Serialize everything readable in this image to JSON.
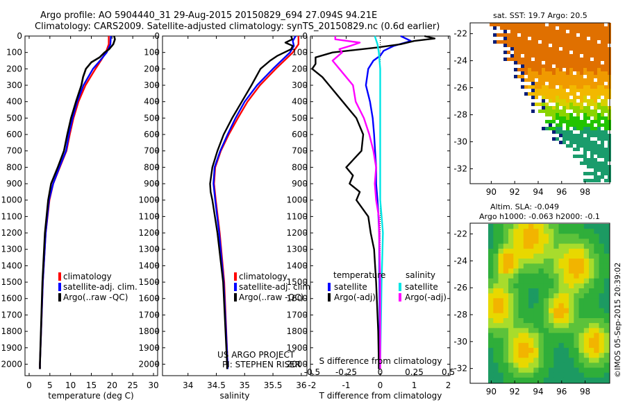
{
  "header": {
    "line1": "Argo profile: AO 5904440_31 29-Aug-2015 20150829_694 27.094S 94.21E",
    "line2": "Climatology: CARS2009. Satellite-adjusted climatology: synTS_20150829.nc (0.6d earlier)"
  },
  "colors": {
    "climatology": "#ff0000",
    "satellite": "#0000ff",
    "argo": "#000000",
    "s_satellite": "#00e5e5",
    "s_argo": "#ff00ff"
  },
  "depth_ticks": [
    "0",
    "100",
    "200",
    "300",
    "400",
    "500",
    "600",
    "700",
    "800",
    "900",
    "1000",
    "1100",
    "1200",
    "1300",
    "1400",
    "1500",
    "1600",
    "1700",
    "1800",
    "1900",
    "2000"
  ],
  "chart_data": [
    {
      "type": "line",
      "xlabel": "temperature (deg C)",
      "ylabel": "",
      "xlim": [
        -1,
        31
      ],
      "ylim": [
        2070,
        0
      ],
      "xticks": [
        "0",
        "5",
        "10",
        "15",
        "20",
        "25",
        "30"
      ],
      "legend": [
        "climatology",
        "satellite-adj. clim.",
        "Argo(..raw -QC)"
      ],
      "series": [
        {
          "name": "climatology",
          "depth": [
            0,
            50,
            100,
            150,
            200,
            300,
            400,
            500,
            600,
            700,
            800,
            900,
            1000,
            1200,
            1500,
            2000,
            2030
          ],
          "values": [
            19.2,
            19.2,
            18.5,
            17.3,
            16.0,
            13.6,
            11.9,
            10.7,
            9.8,
            9.0,
            7.4,
            5.8,
            4.9,
            4.0,
            3.3,
            2.6,
            2.6
          ]
        },
        {
          "name": "satellite-adj. clim.",
          "depth": [
            0,
            50,
            100,
            150,
            200,
            300,
            400,
            500,
            600,
            700,
            800,
            900,
            1000,
            1200,
            1500,
            2000,
            2030
          ],
          "values": [
            19.7,
            19.6,
            18.7,
            17.1,
            15.4,
            13.1,
            11.6,
            10.5,
            9.6,
            8.9,
            7.3,
            5.8,
            4.8,
            4.0,
            3.3,
            2.6,
            2.6
          ]
        },
        {
          "name": "Argo(..raw -QC)",
          "depth": [
            0,
            20,
            50,
            80,
            100,
            130,
            160,
            200,
            250,
            300,
            400,
            500,
            600,
            700,
            800,
            900,
            1000,
            1200,
            1500,
            2000,
            2030
          ],
          "values": [
            20.5,
            20.7,
            20.3,
            19.3,
            18.2,
            17.0,
            15.0,
            13.7,
            13.0,
            12.6,
            11.3,
            10.1,
            9.2,
            8.4,
            6.9,
            5.3,
            4.6,
            3.8,
            3.2,
            2.6,
            2.6
          ]
        }
      ]
    },
    {
      "type": "line",
      "xlabel": "salinity",
      "ylabel": "",
      "xlim": [
        33.55,
        36.1
      ],
      "ylim": [
        2070,
        0
      ],
      "xticks": [
        "34",
        "34.5",
        "35",
        "35.5",
        "36"
      ],
      "legend": [
        "climatology",
        "satellite-adj. clim.",
        "Argo(..raw -QC)"
      ],
      "annotation": [
        "US ARGO PROJECT",
        "PI: STEPHEN RISER"
      ],
      "series": [
        {
          "name": "climatology",
          "depth": [
            0,
            50,
            100,
            200,
            300,
            400,
            500,
            600,
            700,
            800,
            900,
            1000,
            1200,
            1500,
            2000,
            2030
          ],
          "values": [
            35.95,
            35.95,
            35.85,
            35.55,
            35.27,
            35.05,
            34.88,
            34.72,
            34.58,
            34.48,
            34.46,
            34.49,
            34.56,
            34.64,
            34.7,
            34.7
          ]
        },
        {
          "name": "satellite-adj. clim.",
          "depth": [
            0,
            30,
            60,
            100,
            200,
            300,
            400,
            500,
            600,
            700,
            800,
            900,
            1000,
            1200,
            1500,
            2000,
            2030
          ],
          "values": [
            35.9,
            35.85,
            35.87,
            35.8,
            35.5,
            35.22,
            35.0,
            34.84,
            34.7,
            34.57,
            34.47,
            34.45,
            34.48,
            34.55,
            34.63,
            34.7,
            34.7
          ]
        },
        {
          "name": "Argo(..raw -QC)",
          "depth": [
            0,
            20,
            40,
            60,
            80,
            100,
            120,
            150,
            200,
            300,
            400,
            500,
            600,
            700,
            800,
            900,
            950,
            1000,
            1200,
            1500,
            2000,
            2030
          ],
          "values": [
            35.82,
            35.84,
            35.72,
            35.85,
            35.82,
            35.7,
            35.58,
            35.45,
            35.28,
            35.12,
            34.95,
            34.78,
            34.63,
            34.52,
            34.43,
            34.39,
            34.4,
            34.43,
            34.52,
            34.62,
            34.69,
            34.69
          ]
        }
      ]
    },
    {
      "type": "line",
      "xlabel": "T difference from climatology",
      "x2label": "S difference from climatology",
      "ylabel": "",
      "xlim": [
        -2.05,
        2.05
      ],
      "ylim": [
        2070,
        0
      ],
      "xticks": [
        "-2",
        "-1",
        "0",
        "1",
        "2"
      ],
      "x2ticks": [
        "-0.5",
        "-0.25",
        "0",
        "0.25",
        "0.5"
      ],
      "legend_titles": [
        "temperature",
        "salinity"
      ],
      "legend": [
        "satellite",
        "Argo(-adj)",
        "satellite",
        "Argo(-adj)"
      ],
      "series": [
        {
          "name": "satellite",
          "quantity": "temperature",
          "depth": [
            0,
            30,
            60,
            90,
            120,
            150,
            200,
            300,
            400,
            500,
            600,
            700,
            800,
            900,
            1000,
            1100,
            1200,
            1500,
            2000,
            2030
          ],
          "values": [
            0.6,
            0.9,
            0.4,
            0.1,
            0.0,
            -0.2,
            -0.35,
            -0.42,
            -0.3,
            -0.22,
            -0.18,
            -0.15,
            -0.12,
            -0.12,
            -0.08,
            -0.05,
            -0.03,
            -0.02,
            -0.01,
            -0.01
          ]
        },
        {
          "name": "Argo(-adj)",
          "quantity": "temperature",
          "depth": [
            0,
            15,
            30,
            50,
            70,
            100,
            130,
            170,
            200,
            250,
            300,
            400,
            500,
            600,
            700,
            800,
            850,
            900,
            950,
            1000,
            1100,
            1200,
            1300,
            1500,
            1800,
            2000,
            2030
          ],
          "values": [
            1.3,
            1.6,
            1.0,
            0.6,
            -0.1,
            -1.4,
            -1.9,
            -1.9,
            -2.0,
            -1.7,
            -1.5,
            -1.1,
            -0.7,
            -0.5,
            -0.55,
            -1.0,
            -0.8,
            -0.9,
            -0.6,
            -0.7,
            -0.35,
            -0.28,
            -0.18,
            -0.12,
            -0.06,
            -0.04,
            -0.04
          ]
        },
        {
          "name": "satellite",
          "quantity": "salinity",
          "depth": [
            0,
            50,
            100,
            200,
            300,
            400,
            500,
            600,
            700,
            800,
            900,
            1000,
            1100,
            1200,
            1500,
            2000,
            2030
          ],
          "values": [
            -0.04,
            -0.02,
            -0.01,
            0.0,
            0.0,
            0.0,
            0.0,
            0.0,
            0.0,
            0.0,
            0.0,
            0.0,
            0.01,
            0.02,
            0.01,
            0.0,
            0.0
          ]
        },
        {
          "name": "Argo(-adj)",
          "quantity": "salinity",
          "depth": [
            0,
            20,
            40,
            60,
            80,
            100,
            150,
            200,
            250,
            300,
            400,
            500,
            600,
            700,
            800,
            900,
            1000,
            1100,
            1500,
            2000,
            2030
          ],
          "values": [
            -0.33,
            -0.33,
            -0.15,
            -0.22,
            -0.3,
            -0.28,
            -0.35,
            -0.3,
            -0.25,
            -0.2,
            -0.18,
            -0.12,
            -0.08,
            -0.05,
            -0.03,
            -0.04,
            -0.03,
            -0.01,
            0.0,
            0.0,
            0.0
          ]
        }
      ]
    },
    {
      "type": "heatmap",
      "title": "sat. SST: 19.7 Argo: 20.5",
      "xticks": [
        "90",
        "92",
        "94",
        "96",
        "98"
      ],
      "yticks": [
        "-22",
        "-24",
        "-26",
        "-28",
        "-30",
        "-32"
      ],
      "xlim": [
        88.2,
        100.1
      ],
      "ylim": [
        -33.1,
        -21.2
      ]
    },
    {
      "type": "heatmap",
      "title": "Altim. SLA: -0.049",
      "subtitle": "Argo h1000: -0.063 h2000: -0.1",
      "xticks": [
        "90",
        "92",
        "94",
        "96",
        "98"
      ],
      "yticks": [
        "-22",
        "-24",
        "-26",
        "-28",
        "-30",
        "-32"
      ],
      "xlim": [
        88.2,
        100.1
      ],
      "ylim": [
        -33.1,
        -21.2
      ]
    }
  ],
  "side_text": "©IMOS 05-Sep-2015 20:39:02"
}
